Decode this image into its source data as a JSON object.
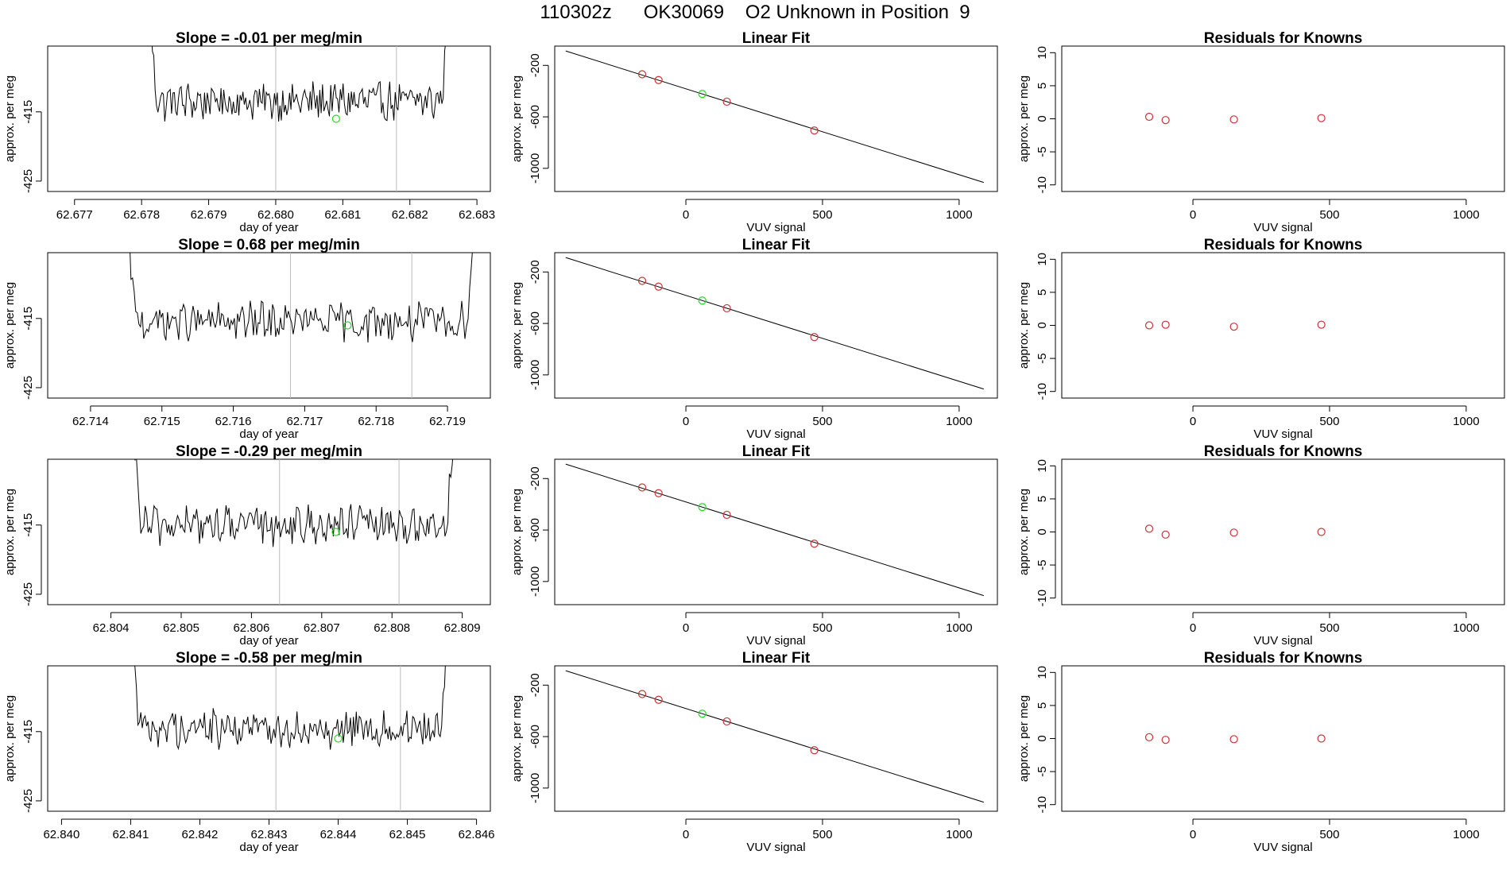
{
  "figure": {
    "title": "110302z      OK30069    O2 Unknown in Position  9"
  },
  "chart_data": [
    {
      "type": "line",
      "panel": "trace-1",
      "title": "Slope =  -0.01  per meg/min",
      "xlabel": "day of year",
      "ylabel": "approx. per meg",
      "xlim": [
        62.6766,
        62.6832
      ],
      "ylim": [
        -426.5,
        -405.5
      ],
      "xticks": [
        62.677,
        62.678,
        62.679,
        62.68,
        62.681,
        62.682,
        62.683
      ],
      "xtick_labels": [
        "62.677",
        "62.678",
        "62.679",
        "62.680",
        "62.681",
        "62.682",
        "62.683"
      ],
      "yticks": [
        -425,
        -415
      ],
      "ytick_labels": [
        "-425",
        "-415"
      ],
      "start_x": 62.6781,
      "end_x": 62.6826,
      "level": -413.5,
      "amplitude": 2.4,
      "vlines": [
        62.68,
        62.6818
      ],
      "marker": {
        "x": 62.6809,
        "y": -416,
        "color": "#22dd22"
      }
    },
    {
      "type": "scatter",
      "panel": "fit-1",
      "title": "Linear Fit",
      "xlabel": "VUV signal",
      "ylabel": "approx. per meg",
      "xlim": [
        -480,
        1140
      ],
      "ylim": [
        -1180,
        -50
      ],
      "xticks": [
        0,
        500,
        1000
      ],
      "xtick_labels": [
        "0",
        "500",
        "1000"
      ],
      "yticks": [
        -200,
        -600,
        -1000
      ],
      "ytick_labels": [
        "-200",
        "-600",
        "-1000"
      ],
      "fit_line": {
        "x": [
          -440,
          1090
        ],
        "y": [
          -88,
          -1110
        ]
      },
      "points": [
        {
          "x": -160,
          "y": -269,
          "color": "#cc3333"
        },
        {
          "x": -100,
          "y": -314,
          "color": "#cc3333"
        },
        {
          "x": 60,
          "y": -422,
          "color": "#22dd22"
        },
        {
          "x": 150,
          "y": -482,
          "color": "#cc3333"
        },
        {
          "x": 470,
          "y": -706,
          "color": "#cc3333"
        }
      ]
    },
    {
      "type": "scatter",
      "panel": "resid-1",
      "title": "Residuals for Knowns",
      "xlabel": "VUV signal",
      "ylabel": "approx. per meg",
      "xlim": [
        -480,
        1140
      ],
      "ylim": [
        -11,
        11
      ],
      "xticks": [
        0,
        500,
        1000
      ],
      "xtick_labels": [
        "0",
        "500",
        "1000"
      ],
      "yticks": [
        -10,
        -5,
        0,
        5,
        10
      ],
      "ytick_labels": [
        "-10",
        "-5",
        "0",
        "5",
        "10"
      ],
      "points": [
        {
          "x": -160,
          "y": 0.3,
          "color": "#cc3333"
        },
        {
          "x": -100,
          "y": -0.2,
          "color": "#cc3333"
        },
        {
          "x": 150,
          "y": -0.1,
          "color": "#cc3333"
        },
        {
          "x": 470,
          "y": 0.1,
          "color": "#cc3333"
        }
      ]
    },
    {
      "type": "line",
      "panel": "trace-2",
      "title": "Slope =  0.68  per meg/min",
      "xlabel": "day of year",
      "ylabel": "approx. per meg",
      "xlim": [
        62.7134,
        62.7196
      ],
      "ylim": [
        -426.5,
        -405.5
      ],
      "xticks": [
        62.714,
        62.715,
        62.716,
        62.717,
        62.718,
        62.719
      ],
      "xtick_labels": [
        "62.714",
        "62.715",
        "62.716",
        "62.717",
        "62.718",
        "62.719"
      ],
      "yticks": [
        -425,
        -415
      ],
      "ytick_labels": [
        "-425",
        "-415"
      ],
      "start_x": 62.7145,
      "end_x": 62.7194,
      "level": -415.5,
      "amplitude": 2.4,
      "vlines": [
        62.7168,
        62.7185
      ],
      "marker": {
        "x": 62.7176,
        "y": -416,
        "color": "#22dd22"
      }
    },
    {
      "type": "scatter",
      "panel": "fit-2",
      "title": "Linear Fit",
      "xlabel": "VUV signal",
      "ylabel": "approx. per meg",
      "xlim": [
        -480,
        1140
      ],
      "ylim": [
        -1180,
        -50
      ],
      "xticks": [
        0,
        500,
        1000
      ],
      "xtick_labels": [
        "0",
        "500",
        "1000"
      ],
      "yticks": [
        -200,
        -600,
        -1000
      ],
      "ytick_labels": [
        "-200",
        "-600",
        "-1000"
      ],
      "fit_line": {
        "x": [
          -440,
          1090
        ],
        "y": [
          -88,
          -1110
        ]
      },
      "points": [
        {
          "x": -160,
          "y": -269,
          "color": "#cc3333"
        },
        {
          "x": -100,
          "y": -314,
          "color": "#cc3333"
        },
        {
          "x": 60,
          "y": -422,
          "color": "#22dd22"
        },
        {
          "x": 150,
          "y": -482,
          "color": "#cc3333"
        },
        {
          "x": 470,
          "y": -706,
          "color": "#cc3333"
        }
      ]
    },
    {
      "type": "scatter",
      "panel": "resid-2",
      "title": "Residuals for Knowns",
      "xlabel": "VUV signal",
      "ylabel": "approx. per meg",
      "xlim": [
        -480,
        1140
      ],
      "ylim": [
        -11,
        11
      ],
      "xticks": [
        0,
        500,
        1000
      ],
      "xtick_labels": [
        "0",
        "500",
        "1000"
      ],
      "yticks": [
        -10,
        -5,
        0,
        5,
        10
      ],
      "ytick_labels": [
        "-10",
        "-5",
        "0",
        "5",
        "10"
      ],
      "points": [
        {
          "x": -160,
          "y": 0.0,
          "color": "#cc3333"
        },
        {
          "x": -100,
          "y": 0.1,
          "color": "#cc3333"
        },
        {
          "x": 150,
          "y": -0.2,
          "color": "#cc3333"
        },
        {
          "x": 470,
          "y": 0.1,
          "color": "#cc3333"
        }
      ]
    },
    {
      "type": "line",
      "panel": "trace-3",
      "title": "Slope =  -0.29  per meg/min",
      "xlabel": "day of year",
      "ylabel": "approx. per meg",
      "xlim": [
        62.8031,
        62.8094
      ],
      "ylim": [
        -426.5,
        -405.5
      ],
      "xticks": [
        62.804,
        62.805,
        62.806,
        62.807,
        62.808,
        62.809
      ],
      "xtick_labels": [
        "62.804",
        "62.805",
        "62.806",
        "62.807",
        "62.808",
        "62.809"
      ],
      "yticks": [
        -425,
        -415
      ],
      "ytick_labels": [
        "-425",
        "-415"
      ],
      "start_x": 62.8043,
      "end_x": 62.8089,
      "level": -415.0,
      "amplitude": 2.4,
      "vlines": [
        62.8064,
        62.8081
      ],
      "marker": {
        "x": 62.8072,
        "y": -416,
        "color": "#22dd22"
      }
    },
    {
      "type": "scatter",
      "panel": "fit-3",
      "title": "Linear Fit",
      "xlabel": "VUV signal",
      "ylabel": "approx. per meg",
      "xlim": [
        -480,
        1140
      ],
      "ylim": [
        -1180,
        -50
      ],
      "xticks": [
        0,
        500,
        1000
      ],
      "xtick_labels": [
        "0",
        "500",
        "1000"
      ],
      "yticks": [
        -200,
        -600,
        -1000
      ],
      "ytick_labels": [
        "-200",
        "-600",
        "-1000"
      ],
      "fit_line": {
        "x": [
          -440,
          1090
        ],
        "y": [
          -88,
          -1110
        ]
      },
      "points": [
        {
          "x": -160,
          "y": -269,
          "color": "#cc3333"
        },
        {
          "x": -100,
          "y": -314,
          "color": "#cc3333"
        },
        {
          "x": 60,
          "y": -422,
          "color": "#22dd22"
        },
        {
          "x": 150,
          "y": -482,
          "color": "#cc3333"
        },
        {
          "x": 470,
          "y": -706,
          "color": "#cc3333"
        }
      ]
    },
    {
      "type": "scatter",
      "panel": "resid-3",
      "title": "Residuals for Knowns",
      "xlabel": "VUV signal",
      "ylabel": "approx. per meg",
      "xlim": [
        -480,
        1140
      ],
      "ylim": [
        -11,
        11
      ],
      "xticks": [
        0,
        500,
        1000
      ],
      "xtick_labels": [
        "0",
        "500",
        "1000"
      ],
      "yticks": [
        -10,
        -5,
        0,
        5,
        10
      ],
      "ytick_labels": [
        "-10",
        "-5",
        "0",
        "5",
        "10"
      ],
      "points": [
        {
          "x": -160,
          "y": 0.5,
          "color": "#cc3333"
        },
        {
          "x": -100,
          "y": -0.4,
          "color": "#cc3333"
        },
        {
          "x": 150,
          "y": -0.1,
          "color": "#cc3333"
        },
        {
          "x": 470,
          "y": 0.0,
          "color": "#cc3333"
        }
      ]
    },
    {
      "type": "line",
      "panel": "trace-4",
      "title": "Slope =  -0.58  per meg/min",
      "xlabel": "day of year",
      "ylabel": "approx. per meg",
      "xlim": [
        62.8398,
        62.8462
      ],
      "ylim": [
        -426.5,
        -405.5
      ],
      "xticks": [
        62.84,
        62.841,
        62.842,
        62.843,
        62.844,
        62.845,
        62.846
      ],
      "xtick_labels": [
        "62.840",
        "62.841",
        "62.842",
        "62.843",
        "62.844",
        "62.845",
        "62.846"
      ],
      "yticks": [
        -425,
        -415
      ],
      "ytick_labels": [
        "-425",
        "-415"
      ],
      "start_x": 62.841,
      "end_x": 62.8456,
      "level": -414.5,
      "amplitude": 2.4,
      "vlines": [
        62.8431,
        62.8449
      ],
      "marker": {
        "x": 62.844,
        "y": -416,
        "color": "#22dd22"
      }
    },
    {
      "type": "scatter",
      "panel": "fit-4",
      "title": "Linear Fit",
      "xlabel": "VUV signal",
      "ylabel": "approx. per meg",
      "xlim": [
        -480,
        1140
      ],
      "ylim": [
        -1180,
        -50
      ],
      "xticks": [
        0,
        500,
        1000
      ],
      "xtick_labels": [
        "0",
        "500",
        "1000"
      ],
      "yticks": [
        -200,
        -600,
        -1000
      ],
      "ytick_labels": [
        "-200",
        "-600",
        "-1000"
      ],
      "fit_line": {
        "x": [
          -440,
          1090
        ],
        "y": [
          -88,
          -1110
        ]
      },
      "points": [
        {
          "x": -160,
          "y": -269,
          "color": "#cc3333"
        },
        {
          "x": -100,
          "y": -314,
          "color": "#cc3333"
        },
        {
          "x": 60,
          "y": -422,
          "color": "#22dd22"
        },
        {
          "x": 150,
          "y": -482,
          "color": "#cc3333"
        },
        {
          "x": 470,
          "y": -706,
          "color": "#cc3333"
        }
      ]
    },
    {
      "type": "scatter",
      "panel": "resid-4",
      "title": "Residuals for Knowns",
      "xlabel": "VUV signal",
      "ylabel": "approx. per meg",
      "xlim": [
        -480,
        1140
      ],
      "ylim": [
        -11,
        11
      ],
      "xticks": [
        0,
        500,
        1000
      ],
      "xtick_labels": [
        "0",
        "500",
        "1000"
      ],
      "yticks": [
        -10,
        -5,
        0,
        5,
        10
      ],
      "ytick_labels": [
        "-10",
        "-5",
        "0",
        "5",
        "10"
      ],
      "points": [
        {
          "x": -160,
          "y": 0.2,
          "color": "#cc3333"
        },
        {
          "x": -100,
          "y": -0.2,
          "color": "#cc3333"
        },
        {
          "x": 150,
          "y": -0.1,
          "color": "#cc3333"
        },
        {
          "x": 470,
          "y": 0.0,
          "color": "#cc3333"
        }
      ]
    }
  ]
}
